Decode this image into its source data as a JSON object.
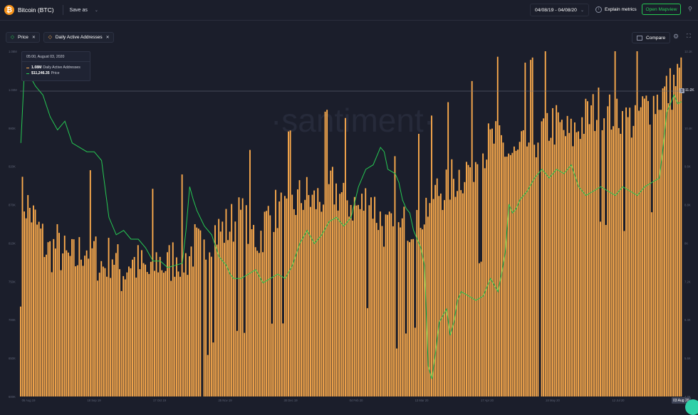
{
  "header": {
    "logo_glyph": "₿",
    "title": "Bitcoin (BTC)",
    "save_as": "Save as",
    "date_range": "04/08/19 - 04/08/20",
    "explain_metrics": "Explain metrics",
    "open_mapview": "Open Mapview"
  },
  "metrics": [
    {
      "label": "Price",
      "color": "#26c953"
    },
    {
      "label": "Daily Active Addresses",
      "color": "#ffad4d"
    }
  ],
  "toolbar": {
    "compare": "Compare"
  },
  "tooltip": {
    "date": "05:00, August 03, 2020",
    "rows": [
      {
        "value": "1.08M",
        "label": "Daily Active Addresses",
        "color": "#ffad4d"
      },
      {
        "value": "$11,246.35",
        "label": "Price",
        "color": "#26c953"
      }
    ]
  },
  "watermark": "·santiment·",
  "price_marker": {
    "box": "$",
    "value": "11.2K"
  },
  "last_date": "03 Aug 20",
  "colors": {
    "background": "#1b1e2b",
    "price": "#26c953",
    "addresses": "#ffad4d",
    "accent": "#26c953"
  },
  "chart_data": {
    "type": "bar",
    "x_ticks": [
      "06 Aug 19",
      "18 Sep 19",
      "17 Oct 19",
      "25 Nov 19",
      "30 Dec 19",
      "04 Feb 20",
      "13 Mar 20",
      "17 Apr 20",
      "24 May 20",
      "12 Jul 20",
      "03 Aug 20"
    ],
    "y_left_ticks": [
      "1.08M",
      "1.03M",
      "980K",
      "920K",
      "870K",
      "810K",
      "750K",
      "700K",
      "650K",
      "600K"
    ],
    "y_right_ticks": [
      "12.1K",
      "11.2K",
      "10.4K",
      "9.6K",
      "8.8K",
      "8K",
      "7.2K",
      "6.4K",
      "5.6K",
      "4.8K"
    ],
    "y_left_range": [
      600000,
      1080000
    ],
    "y_right_range": [
      4500,
      12400
    ],
    "series": [
      {
        "name": "Daily Active Addresses",
        "type": "bar",
        "color": "#ffad4d",
        "keypoints": [
          [
            0,
            880
          ],
          [
            5,
            860
          ],
          [
            10,
            830
          ],
          [
            15,
            800
          ],
          [
            20,
            810
          ],
          [
            25,
            790
          ],
          [
            30,
            790
          ],
          [
            35,
            810
          ],
          [
            40,
            800
          ],
          [
            45,
            780
          ],
          [
            50,
            800
          ],
          [
            55,
            770
          ],
          [
            60,
            790
          ],
          [
            65,
            780
          ],
          [
            70,
            770
          ],
          [
            75,
            790
          ],
          [
            80,
            780
          ],
          [
            85,
            800
          ],
          [
            90,
            790
          ],
          [
            95,
            810
          ],
          [
            100,
            800
          ],
          [
            105,
            830
          ],
          [
            110,
            830
          ],
          [
            115,
            840
          ],
          [
            120,
            850
          ],
          [
            125,
            830
          ],
          [
            130,
            820
          ],
          [
            135,
            850
          ],
          [
            140,
            860
          ],
          [
            145,
            850
          ],
          [
            150,
            870
          ],
          [
            155,
            880
          ],
          [
            160,
            870
          ],
          [
            165,
            880
          ],
          [
            170,
            890
          ],
          [
            175,
            880
          ],
          [
            180,
            870
          ],
          [
            185,
            860
          ],
          [
            190,
            880
          ],
          [
            195,
            850
          ],
          [
            200,
            830
          ],
          [
            205,
            820
          ],
          [
            210,
            840
          ],
          [
            215,
            850
          ],
          [
            220,
            860
          ],
          [
            225,
            880
          ],
          [
            230,
            890
          ],
          [
            235,
            900
          ],
          [
            240,
            910
          ],
          [
            245,
            920
          ],
          [
            250,
            940
          ],
          [
            255,
            950
          ],
          [
            260,
            960
          ],
          [
            265,
            940
          ],
          [
            270,
            930
          ],
          [
            275,
            950
          ],
          [
            280,
            960
          ],
          [
            285,
            970
          ],
          [
            290,
            980
          ],
          [
            295,
            970
          ],
          [
            300,
            960
          ],
          [
            305,
            980
          ],
          [
            310,
            990
          ],
          [
            315,
            1000
          ],
          [
            320,
            990
          ],
          [
            325,
            1000
          ],
          [
            330,
            980
          ],
          [
            335,
            990
          ],
          [
            340,
            1000
          ],
          [
            345,
            1010
          ],
          [
            350,
            1020
          ],
          [
            355,
            1030
          ],
          [
            360,
            1050
          ]
        ],
        "noise": 35
      },
      {
        "name": "Price",
        "type": "line",
        "color": "#26c953",
        "points": [
          [
            0,
            10300
          ],
          [
            2,
            12000
          ],
          [
            4,
            11900
          ],
          [
            8,
            11600
          ],
          [
            12,
            11400
          ],
          [
            16,
            10900
          ],
          [
            20,
            10600
          ],
          [
            24,
            10800
          ],
          [
            28,
            10300
          ],
          [
            32,
            10200
          ],
          [
            36,
            10100
          ],
          [
            40,
            10100
          ],
          [
            44,
            9900
          ],
          [
            48,
            8600
          ],
          [
            52,
            8200
          ],
          [
            56,
            8300
          ],
          [
            60,
            8100
          ],
          [
            64,
            8100
          ],
          [
            68,
            7900
          ],
          [
            72,
            7600
          ],
          [
            76,
            7600
          ],
          [
            80,
            7450
          ],
          [
            84,
            7500
          ],
          [
            88,
            7550
          ],
          [
            90,
            8300
          ],
          [
            92,
            9300
          ],
          [
            94,
            9000
          ],
          [
            96,
            8750
          ],
          [
            100,
            8400
          ],
          [
            104,
            8200
          ],
          [
            108,
            7700
          ],
          [
            112,
            7500
          ],
          [
            114,
            7300
          ],
          [
            116,
            7200
          ],
          [
            120,
            7200
          ],
          [
            124,
            7300
          ],
          [
            128,
            7400
          ],
          [
            132,
            7100
          ],
          [
            136,
            7200
          ],
          [
            140,
            7300
          ],
          [
            144,
            7200
          ],
          [
            148,
            7500
          ],
          [
            152,
            8000
          ],
          [
            156,
            8300
          ],
          [
            160,
            8000
          ],
          [
            164,
            8200
          ],
          [
            168,
            8500
          ],
          [
            172,
            8600
          ],
          [
            176,
            8400
          ],
          [
            180,
            8600
          ],
          [
            184,
            9300
          ],
          [
            188,
            9700
          ],
          [
            192,
            9800
          ],
          [
            196,
            10200
          ],
          [
            198,
            10100
          ],
          [
            200,
            9700
          ],
          [
            204,
            9600
          ],
          [
            206,
            9400
          ],
          [
            208,
            9000
          ],
          [
            210,
            8800
          ],
          [
            212,
            8700
          ],
          [
            214,
            8300
          ],
          [
            216,
            8100
          ],
          [
            218,
            7900
          ],
          [
            220,
            7500
          ],
          [
            222,
            5200
          ],
          [
            224,
            4900
          ],
          [
            226,
            5500
          ],
          [
            228,
            6200
          ],
          [
            232,
            6500
          ],
          [
            234,
            5900
          ],
          [
            236,
            6200
          ],
          [
            238,
            6700
          ],
          [
            240,
            6900
          ],
          [
            244,
            6800
          ],
          [
            248,
            6700
          ],
          [
            252,
            6800
          ],
          [
            256,
            7200
          ],
          [
            260,
            6900
          ],
          [
            262,
            7300
          ],
          [
            264,
            7800
          ],
          [
            266,
            8900
          ],
          [
            268,
            8700
          ],
          [
            270,
            8800
          ],
          [
            272,
            9000
          ],
          [
            276,
            9200
          ],
          [
            280,
            9500
          ],
          [
            284,
            9700
          ],
          [
            288,
            9500
          ],
          [
            292,
            9700
          ],
          [
            296,
            9600
          ],
          [
            300,
            9800
          ],
          [
            304,
            9300
          ],
          [
            308,
            9100
          ],
          [
            312,
            9200
          ],
          [
            316,
            9300
          ],
          [
            320,
            9200
          ],
          [
            324,
            9100
          ],
          [
            328,
            9300
          ],
          [
            332,
            9200
          ],
          [
            336,
            9100
          ],
          [
            340,
            9300
          ],
          [
            344,
            9400
          ],
          [
            348,
            9500
          ],
          [
            350,
            10200
          ],
          [
            352,
            11000
          ],
          [
            354,
            11200
          ],
          [
            356,
            11400
          ],
          [
            358,
            11200
          ],
          [
            360,
            11246
          ]
        ]
      }
    ]
  }
}
